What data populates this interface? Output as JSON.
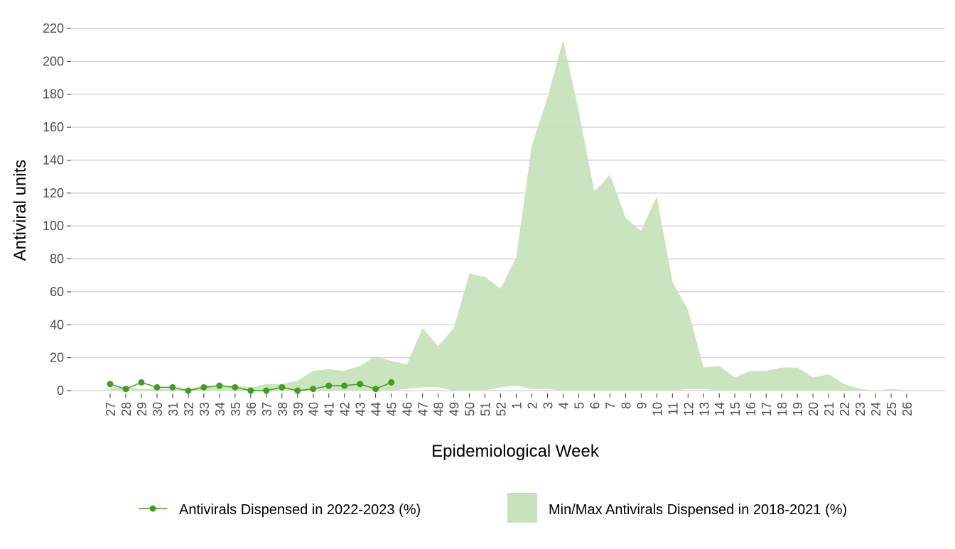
{
  "chart_data": {
    "type": "line",
    "x_label": "Epidemiological Week",
    "y_label": "Antiviral units",
    "categories": [
      "27",
      "28",
      "29",
      "30",
      "31",
      "32",
      "33",
      "34",
      "35",
      "36",
      "37",
      "38",
      "39",
      "40",
      "41",
      "42",
      "43",
      "44",
      "45",
      "46",
      "47",
      "48",
      "49",
      "50",
      "51",
      "52",
      "1",
      "2",
      "3",
      "4",
      "5",
      "6",
      "7",
      "8",
      "9",
      "10",
      "11",
      "12",
      "13",
      "14",
      "15",
      "16",
      "17",
      "18",
      "19",
      "20",
      "21",
      "22",
      "23",
      "24",
      "25",
      "26"
    ],
    "series": [
      {
        "name": "Antivirals Dispensed in 2022-2023 (%)",
        "color": "#3f9f1f",
        "values": [
          4,
          1,
          5,
          2,
          2,
          0,
          2,
          3,
          2,
          0,
          0,
          2,
          0,
          1,
          3,
          3,
          4,
          1,
          5,
          null,
          null,
          null,
          null,
          null,
          null,
          null,
          null,
          null,
          null,
          null,
          null,
          null,
          null,
          null,
          null,
          null,
          null,
          null,
          null,
          null,
          null,
          null,
          null,
          null,
          null,
          null,
          null,
          null,
          null,
          null,
          null,
          null
        ]
      },
      {
        "name": "Min/Max Antivirals Dispensed in 2018-2021 (%)",
        "color": "#c6e3bb",
        "type": "band",
        "lower": [
          0,
          0,
          0,
          0,
          0,
          0,
          0,
          0,
          0,
          0,
          0,
          0,
          0,
          0,
          0,
          0,
          0,
          0,
          0,
          1,
          2,
          2,
          0,
          0,
          0,
          2,
          3,
          1,
          1,
          0,
          0,
          0,
          0,
          0,
          0,
          0,
          0,
          1,
          1,
          0,
          0,
          0,
          0,
          0,
          0,
          0,
          0,
          0,
          0,
          0,
          0,
          0
        ],
        "upper": [
          2,
          2,
          1,
          1,
          1,
          1,
          3,
          3,
          3,
          2,
          4,
          4,
          6,
          12,
          13,
          12,
          15,
          21,
          18,
          16,
          38,
          27,
          38,
          71,
          69,
          62,
          81,
          149,
          178,
          213,
          170,
          121,
          131,
          105,
          97,
          118,
          66,
          49,
          14,
          15,
          8,
          12,
          12,
          14,
          14,
          8,
          10,
          4,
          1,
          0,
          1,
          0
        ]
      }
    ],
    "ylim": [
      0,
      220
    ],
    "yticks": [
      0,
      20,
      40,
      60,
      80,
      100,
      120,
      140,
      160,
      180,
      200,
      220
    ],
    "grid": true,
    "legend": "bottom"
  }
}
